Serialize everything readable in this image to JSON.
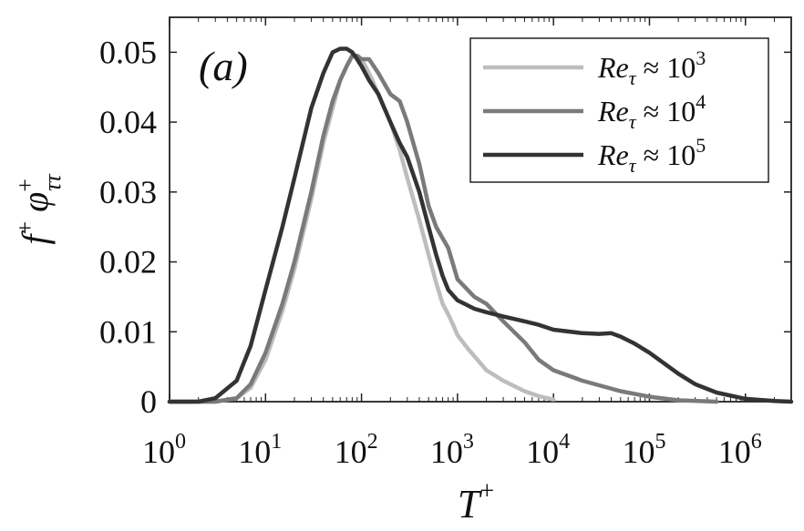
{
  "chart_data": {
    "type": "line",
    "panel_label": "(a)",
    "xlabel": "T+",
    "ylabel": "f+ φ+ττ",
    "xscale": "log",
    "xlim": [
      1,
      3000000
    ],
    "ylim": [
      0,
      0.055
    ],
    "grid": false,
    "legend_position": "top-right",
    "x_ticks": [
      {
        "value": 1,
        "base": "10",
        "exp": "0"
      },
      {
        "value": 10,
        "base": "10",
        "exp": "1"
      },
      {
        "value": 100,
        "base": "10",
        "exp": "2"
      },
      {
        "value": 1000,
        "base": "10",
        "exp": "3"
      },
      {
        "value": 10000,
        "base": "10",
        "exp": "4"
      },
      {
        "value": 100000,
        "base": "10",
        "exp": "5"
      },
      {
        "value": 1000000,
        "base": "10",
        "exp": "6"
      }
    ],
    "y_ticks": [
      {
        "value": 0,
        "label": "0"
      },
      {
        "value": 0.01,
        "label": "0.01"
      },
      {
        "value": 0.02,
        "label": "0.02"
      },
      {
        "value": 0.03,
        "label": "0.03"
      },
      {
        "value": 0.04,
        "label": "0.04"
      },
      {
        "value": 0.05,
        "label": "0.05"
      }
    ],
    "series": [
      {
        "name": "Re_τ ≈ 10^3",
        "legend_base": "Re",
        "legend_sub": "τ",
        "legend_rhs": "≈ 10",
        "legend_exp": "3",
        "color": "#bdbdbd",
        "x": [
          1,
          3,
          5,
          7,
          10,
          15,
          20,
          30,
          40,
          50,
          60,
          70,
          80,
          90,
          100,
          110,
          130,
          160,
          200,
          250,
          300,
          400,
          500,
          600,
          700,
          800,
          900,
          1000,
          1300,
          1500,
          2000,
          3000,
          5000,
          7000,
          10000
        ],
        "y": [
          0,
          0,
          0.0005,
          0.002,
          0.006,
          0.013,
          0.019,
          0.029,
          0.037,
          0.042,
          0.046,
          0.048,
          0.0495,
          0.0495,
          0.049,
          0.048,
          0.046,
          0.043,
          0.04,
          0.036,
          0.032,
          0.026,
          0.021,
          0.017,
          0.014,
          0.0125,
          0.011,
          0.0095,
          0.0075,
          0.0065,
          0.0045,
          0.003,
          0.0015,
          0.0008,
          0.0003
        ]
      },
      {
        "name": "Re_τ ≈ 10^4",
        "legend_base": "Re",
        "legend_sub": "τ",
        "legend_rhs": "≈ 10",
        "legend_exp": "4",
        "color": "#7a7a7a",
        "x": [
          1,
          3,
          5,
          7,
          10,
          15,
          20,
          30,
          40,
          50,
          60,
          70,
          80,
          90,
          100,
          120,
          150,
          200,
          250,
          300,
          400,
          500,
          600,
          800,
          1000,
          1500,
          2000,
          3000,
          5000,
          7000,
          10000,
          20000,
          50000,
          100000,
          200000,
          500000
        ],
        "y": [
          0,
          0,
          0.0005,
          0.0025,
          0.007,
          0.014,
          0.02,
          0.03,
          0.038,
          0.043,
          0.046,
          0.048,
          0.0495,
          0.0495,
          0.049,
          0.049,
          0.047,
          0.044,
          0.043,
          0.04,
          0.034,
          0.028,
          0.025,
          0.022,
          0.0175,
          0.015,
          0.014,
          0.0115,
          0.0085,
          0.006,
          0.0045,
          0.003,
          0.0015,
          0.0007,
          0.0002,
          0
        ]
      },
      {
        "name": "Re_τ ≈ 10^5",
        "legend_base": "Re",
        "legend_sub": "τ",
        "legend_rhs": "≈ 10",
        "legend_exp": "5",
        "color": "#333333",
        "x": [
          1,
          2,
          3,
          5,
          7,
          10,
          15,
          20,
          30,
          40,
          50,
          60,
          70,
          80,
          90,
          100,
          120,
          150,
          200,
          250,
          300,
          400,
          500,
          600,
          700,
          800,
          1000,
          1500,
          2000,
          3000,
          5000,
          7000,
          10000,
          20000,
          30000,
          40000,
          50000,
          70000,
          100000,
          200000,
          300000,
          500000,
          1000000,
          2000000,
          3000000
        ],
        "y": [
          0,
          0,
          0.0005,
          0.003,
          0.008,
          0.016,
          0.025,
          0.032,
          0.042,
          0.047,
          0.05,
          0.0505,
          0.0505,
          0.05,
          0.049,
          0.048,
          0.046,
          0.044,
          0.04,
          0.037,
          0.035,
          0.03,
          0.025,
          0.021,
          0.018,
          0.016,
          0.0145,
          0.0133,
          0.0128,
          0.0122,
          0.0115,
          0.011,
          0.0103,
          0.0098,
          0.0097,
          0.0098,
          0.0093,
          0.0083,
          0.007,
          0.004,
          0.0025,
          0.0013,
          0.0004,
          0.0001,
          0
        ]
      }
    ]
  }
}
